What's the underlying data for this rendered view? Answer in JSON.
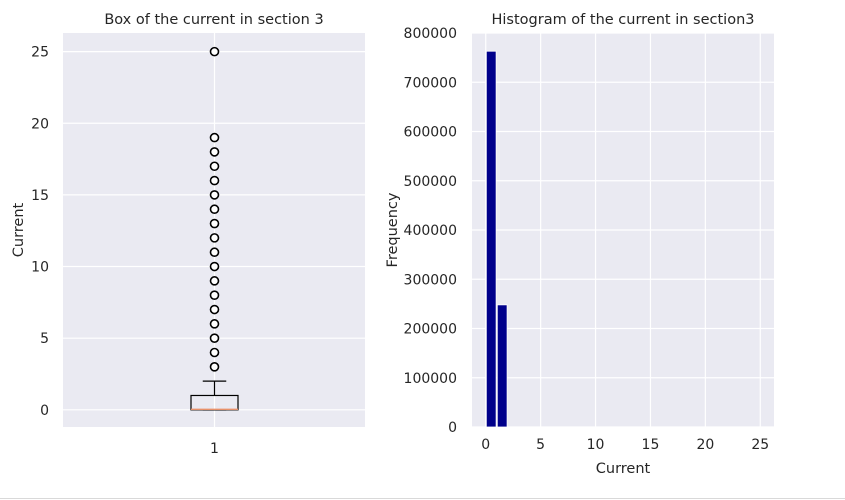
{
  "chart_data": [
    {
      "type": "box",
      "title": "Box of the current in section 3",
      "xlabel": "",
      "ylabel": "Current",
      "categories": [
        "1"
      ],
      "ylim": [
        -1.2,
        26.3
      ],
      "yticks": [
        0,
        5,
        10,
        15,
        20,
        25
      ],
      "box": {
        "whisker_low": 0,
        "q1": 0,
        "median": 0,
        "q3": 1,
        "whisker_high": 2
      },
      "outliers": [
        3,
        4,
        5,
        6,
        7,
        8,
        9,
        10,
        11,
        12,
        13,
        14,
        15,
        16,
        17,
        18,
        19,
        25
      ],
      "grid": true,
      "colors": {
        "background": "#eaeaf2",
        "grid": "#ffffff",
        "box": "#000000",
        "median": "#e8916a"
      }
    },
    {
      "type": "bar",
      "title": "Histogram of the current in section3",
      "xlabel": "Current",
      "ylabel": "Frequency",
      "xlim": [
        -1.25,
        26.25
      ],
      "ylim": [
        0,
        800000
      ],
      "xticks": [
        0,
        5,
        10,
        15,
        20,
        25
      ],
      "yticks": [
        0,
        100000,
        200000,
        300000,
        400000,
        500000,
        600000,
        700000,
        800000
      ],
      "bins": [
        {
          "x0": 0,
          "x1": 1,
          "value": 763000
        },
        {
          "x0": 1,
          "x1": 2,
          "value": 248000
        }
      ],
      "grid": true,
      "colors": {
        "background": "#eaeaf2",
        "grid": "#ffffff",
        "bar": "#00008b"
      }
    }
  ]
}
